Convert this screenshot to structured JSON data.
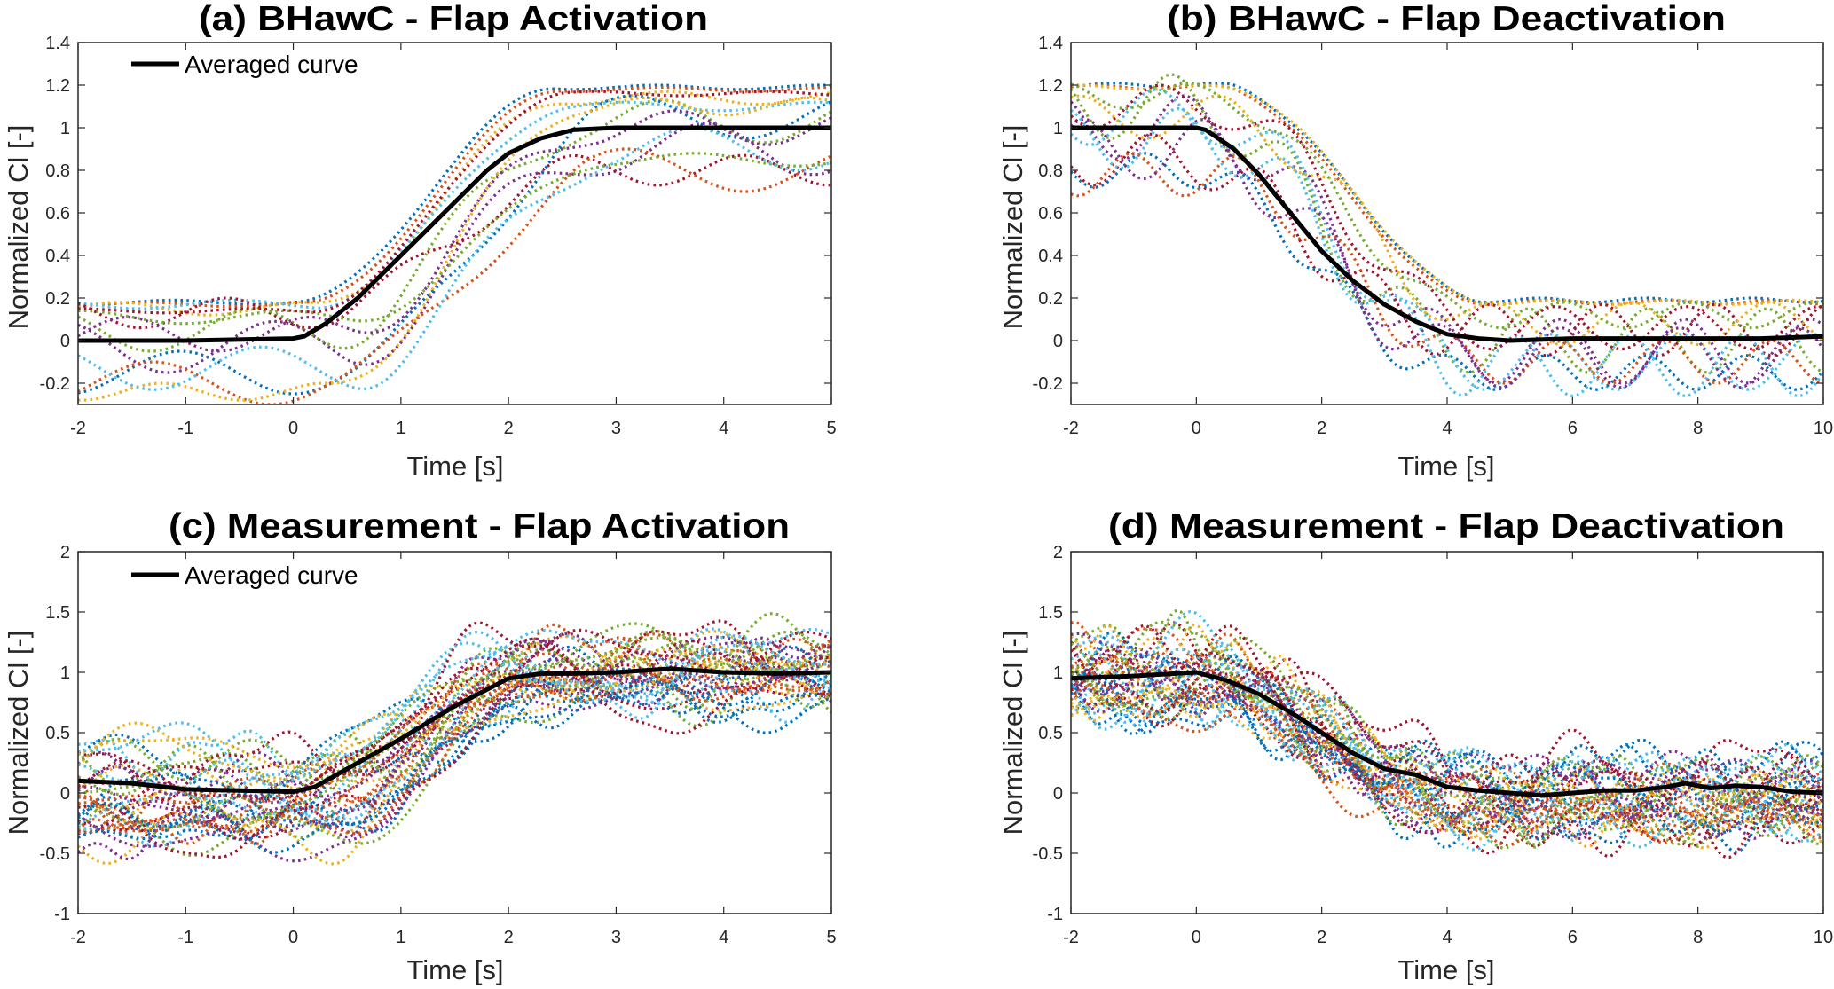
{
  "figure": {
    "palette": [
      "#0072BD",
      "#D95319",
      "#EDB120",
      "#7E2F8E",
      "#77AC30",
      "#4DBEEE",
      "#A2142F"
    ],
    "averaged_color": "#000000"
  },
  "chart_data": [
    {
      "id": "a",
      "type": "line",
      "title": "(a) BHawC - Flap Activation",
      "xlabel": "Time [s]",
      "ylabel": "Normalized Cl [-]",
      "xlim": [
        -2,
        5
      ],
      "ylim": [
        -0.3,
        1.4
      ],
      "xticks": [
        -2,
        -1,
        0,
        1,
        2,
        3,
        4,
        5
      ],
      "yticks": [
        -0.2,
        0,
        0.2,
        0.4,
        0.6,
        0.8,
        1,
        1.2,
        1.4
      ],
      "grid": false,
      "legend": {
        "entries": [
          "Averaged curve"
        ],
        "placement": "top-left"
      },
      "averaged_curve": {
        "name": "Averaged curve",
        "x": [
          -2,
          -1,
          0,
          0.1,
          0.3,
          0.6,
          1,
          1.4,
          1.8,
          2,
          2.3,
          2.6,
          3,
          4,
          5
        ],
        "y": [
          0,
          0,
          0.01,
          0.02,
          0.08,
          0.2,
          0.4,
          0.6,
          0.8,
          0.88,
          0.95,
          0.99,
          1.0,
          1.0,
          1.0
        ]
      },
      "individual_runs": {
        "count": 14,
        "style": "dotted",
        "transition": {
          "start": 0.1,
          "end": 2.5,
          "from": 0,
          "to": 1
        },
        "offsets_before": [
          0.18,
          0.17,
          0.15,
          -0.03,
          0.05,
          0.17,
          0.13,
          -0.15,
          -0.2,
          -0.24,
          0.03,
          0.11,
          -0.13,
          0.14
        ],
        "offsets_after": [
          0.19,
          0.18,
          0.14,
          -0.1,
          0.03,
          0.1,
          -0.2,
          0.05,
          -0.2,
          0.1,
          0.0,
          -0.15,
          -0.1,
          0.16
        ],
        "amplitudes": [
          0.01,
          0.01,
          0.03,
          0.12,
          0.1,
          0.02,
          0.07,
          0.1,
          0.1,
          0.04,
          0.08,
          0.03,
          0.1,
          0.01
        ],
        "periods": [
          1.5,
          1.6,
          1.7,
          2.0,
          1.9,
          1.8,
          1.6,
          2.1,
          2.2,
          1.5,
          1.7,
          1.9,
          2.0,
          1.6
        ],
        "phases": [
          0.0,
          0.7,
          1.3,
          2.1,
          2.8,
          3.4,
          4.0,
          4.7,
          5.3,
          0.4,
          1.0,
          1.8,
          2.5,
          3.1
        ],
        "delays": [
          -0.05,
          0.0,
          0.05,
          0.35,
          0.25,
          0.1,
          0.15,
          0.4,
          0.3,
          0.2,
          0.3,
          0.45,
          0.5,
          0.05
        ]
      }
    },
    {
      "id": "b",
      "type": "line",
      "title": "(b) BHawC - Flap Deactivation",
      "xlabel": "Time [s]",
      "ylabel": "Normalized Cl [-]",
      "xlim": [
        -2,
        10
      ],
      "ylim": [
        -0.3,
        1.4
      ],
      "xticks": [
        -2,
        0,
        2,
        4,
        6,
        8,
        10
      ],
      "yticks": [
        -0.2,
        0,
        0.2,
        0.4,
        0.6,
        0.8,
        1,
        1.2,
        1.4
      ],
      "grid": false,
      "legend": null,
      "averaged_curve": {
        "name": "Averaged curve",
        "x": [
          -2,
          -1,
          0,
          0.15,
          0.6,
          1,
          1.5,
          2,
          2.5,
          3,
          3.5,
          4,
          4.5,
          5,
          6,
          7,
          8,
          9,
          10
        ],
        "y": [
          1.0,
          1.0,
          1.0,
          0.99,
          0.9,
          0.78,
          0.6,
          0.42,
          0.28,
          0.17,
          0.09,
          0.03,
          0.01,
          0.0,
          0.01,
          0.01,
          0.01,
          0.01,
          0.02
        ]
      },
      "individual_runs": {
        "count": 14,
        "style": "dotted",
        "transition": {
          "start": 0.1,
          "end": 4.3,
          "from": 1,
          "to": 0
        },
        "offsets_before": [
          0.2,
          0.19,
          0.19,
          0.0,
          0.1,
          0.05,
          -0.15,
          -0.2,
          -0.22,
          0.05,
          -0.1,
          0.15,
          -0.05,
          0.1
        ],
        "offsets_after": [
          0.19,
          0.18,
          0.18,
          -0.05,
          0.0,
          -0.1,
          0.05,
          -0.15,
          -0.1,
          0.08,
          -0.08,
          0.12,
          -0.12,
          0.06
        ],
        "amplitudes": [
          0.01,
          0.01,
          0.01,
          0.15,
          0.15,
          0.13,
          0.12,
          0.08,
          0.1,
          0.1,
          0.14,
          0.06,
          0.14,
          0.1
        ],
        "periods": [
          1.7,
          1.8,
          1.9,
          2.0,
          1.9,
          2.1,
          1.8,
          1.6,
          1.7,
          2.2,
          1.9,
          2.0,
          1.8,
          2.1
        ],
        "phases": [
          0.2,
          0.9,
          1.5,
          2.2,
          2.9,
          3.5,
          4.1,
          4.8,
          5.4,
          0.6,
          1.2,
          2.0,
          2.6,
          3.3
        ],
        "delays": [
          0.3,
          0.25,
          0.35,
          0.0,
          -0.2,
          0.1,
          -0.3,
          -0.2,
          0.2,
          0.4,
          -0.1,
          0.15,
          0.05,
          0.2
        ]
      }
    },
    {
      "id": "c",
      "type": "line",
      "title": "(c) Measurement - Flap Activation",
      "xlabel": "Time [s]",
      "ylabel": "Normalized Cl [-]",
      "xlim": [
        -2,
        5
      ],
      "ylim": [
        -1,
        2
      ],
      "xticks": [
        -2,
        -1,
        0,
        1,
        2,
        3,
        4,
        5
      ],
      "yticks": [
        -1,
        -0.5,
        0,
        0.5,
        1,
        1.5,
        2
      ],
      "grid": false,
      "legend": {
        "entries": [
          "Averaged curve"
        ],
        "placement": "top-left"
      },
      "averaged_curve": {
        "name": "Averaged curve",
        "x": [
          -2,
          -1.5,
          -1,
          -0.5,
          0,
          0.2,
          0.5,
          1,
          1.5,
          2,
          2.3,
          2.6,
          3,
          3.5,
          4,
          4.5,
          5
        ],
        "y": [
          0.1,
          0.08,
          0.03,
          0.02,
          0.01,
          0.05,
          0.2,
          0.45,
          0.72,
          0.95,
          0.99,
          0.99,
          1.0,
          1.03,
          1.0,
          0.99,
          1.0
        ]
      },
      "individual_runs": {
        "count": 42,
        "style": "dotted",
        "transition": {
          "start": 0.2,
          "end": 2.2,
          "from": 0,
          "to": 1
        },
        "spread_before": 0.32,
        "spread_after": 0.3,
        "seed": 11
      }
    },
    {
      "id": "d",
      "type": "line",
      "title": "(d) Measurement - Flap Deactivation",
      "xlabel": "Time [s]",
      "ylabel": "Normalized Cl [-]",
      "xlim": [
        -2,
        10
      ],
      "ylim": [
        -1,
        2
      ],
      "xticks": [
        -2,
        0,
        2,
        4,
        6,
        8,
        10
      ],
      "yticks": [
        -1,
        -0.5,
        0,
        0.5,
        1,
        1.5,
        2
      ],
      "grid": false,
      "legend": null,
      "averaged_curve": {
        "name": "Averaged curve",
        "x": [
          -2,
          -1,
          0,
          0.5,
          1,
          1.5,
          2,
          2.5,
          3,
          3.5,
          4,
          4.5,
          5,
          5.5,
          6,
          6.5,
          7,
          7.5,
          7.8,
          8.2,
          8.6,
          9,
          9.5,
          10
        ],
        "y": [
          0.95,
          0.97,
          1.0,
          0.93,
          0.82,
          0.67,
          0.5,
          0.33,
          0.2,
          0.15,
          0.05,
          0.02,
          0.0,
          -0.02,
          0.0,
          0.02,
          0.02,
          0.05,
          0.08,
          0.04,
          0.06,
          0.05,
          0.01,
          0.0
        ]
      },
      "individual_runs": {
        "count": 42,
        "style": "dotted",
        "transition": {
          "start": 0.0,
          "end": 4.2,
          "from": 1,
          "to": 0
        },
        "spread_before": 0.3,
        "spread_after": 0.3,
        "seed": 23
      }
    }
  ]
}
